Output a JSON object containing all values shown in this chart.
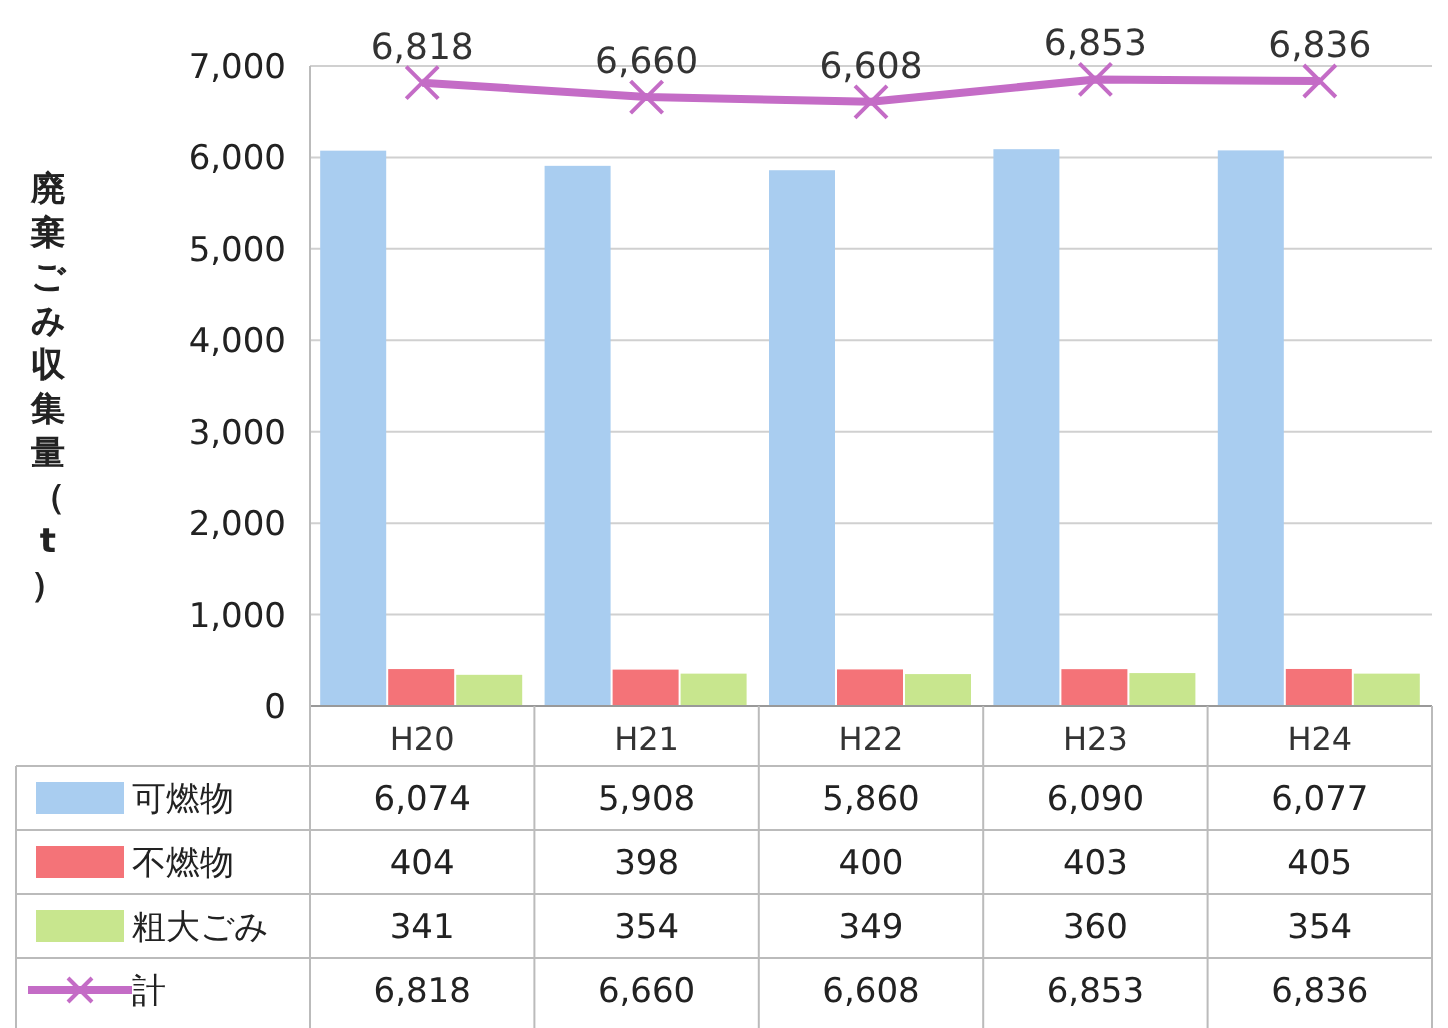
{
  "chart_data": {
    "type": "bar",
    "ylabel": "廃棄ごみ収集量（t）",
    "categories": [
      "H20",
      "H21",
      "H22",
      "H23",
      "H24"
    ],
    "series": [
      {
        "name": "可燃物",
        "color": "#a9cdf0",
        "values": [
          6074,
          5908,
          5860,
          6090,
          6077
        ],
        "value_labels": [
          "6,074",
          "5,908",
          "5,860",
          "6,090",
          "6,077"
        ]
      },
      {
        "name": "不燃物",
        "color": "#f47378",
        "values": [
          404,
          398,
          400,
          403,
          405
        ],
        "value_labels": [
          "404",
          "398",
          "400",
          "403",
          "405"
        ]
      },
      {
        "name": "粗大ごみ",
        "color": "#c8e68e",
        "values": [
          341,
          354,
          349,
          360,
          354
        ],
        "value_labels": [
          "341",
          "354",
          "349",
          "360",
          "354"
        ]
      },
      {
        "name": "計",
        "type": "line",
        "color": "#c46cc6",
        "marker": "cross",
        "values": [
          6818,
          6660,
          6608,
          6853,
          6836
        ],
        "value_labels": [
          "6,818",
          "6,660",
          "6,608",
          "6,853",
          "6,836"
        ]
      }
    ],
    "ylim": [
      0,
      7000
    ],
    "yticks": [
      0,
      {
        "value": 1000,
        "label": "1,000"
      },
      {
        "value": 2000,
        "label": "2,000"
      },
      {
        "value": 3000,
        "label": "3,000"
      },
      {
        "value": 4000,
        "label": "4,000"
      },
      {
        "value": 5000,
        "label": "5,000"
      },
      {
        "value": 6000,
        "label": "6,000"
      },
      {
        "value": 7000,
        "label": "7,000"
      }
    ],
    "grid": "y",
    "legend": "bottom"
  }
}
